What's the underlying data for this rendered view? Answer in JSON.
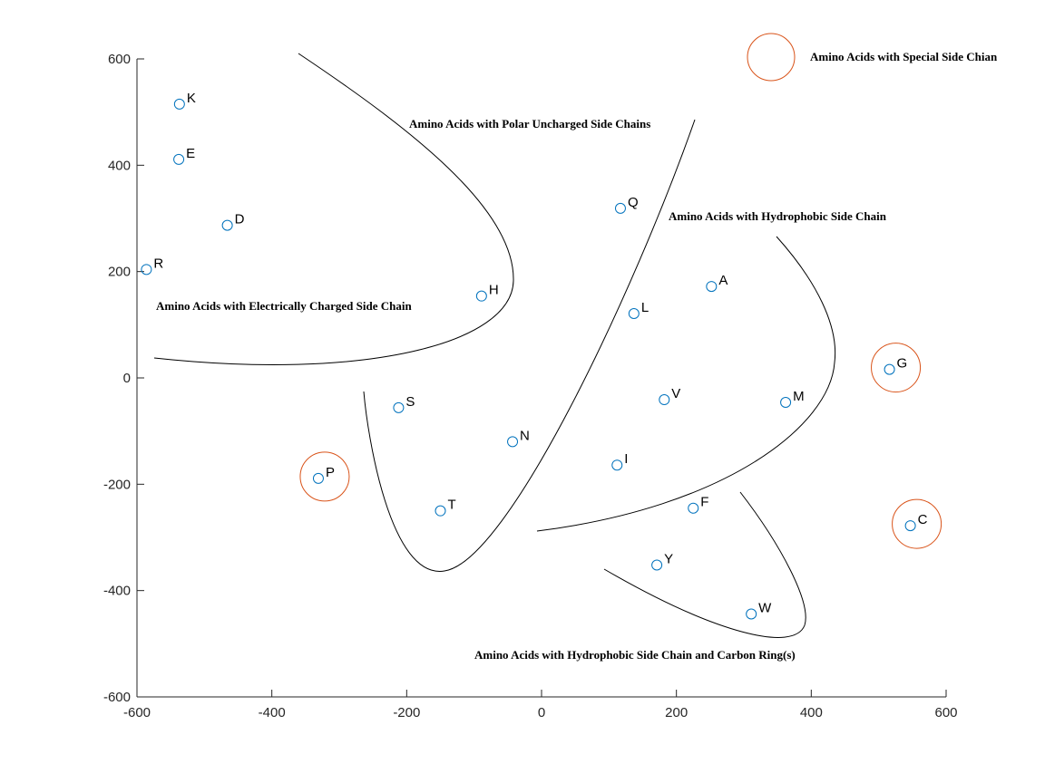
{
  "chart_data": {
    "type": "scatter",
    "title": "",
    "xlabel": "",
    "ylabel": "",
    "xlim": [
      -600,
      600
    ],
    "ylim": [
      -600,
      600
    ],
    "xticks": [
      -600,
      -400,
      -200,
      0,
      200,
      400,
      600
    ],
    "yticks": [
      -600,
      -400,
      -200,
      0,
      200,
      400,
      600
    ],
    "xtick_labels": [
      "-600",
      "-400",
      "-200",
      "0",
      "200",
      "400",
      "600"
    ],
    "ytick_labels": [
      "-600",
      "-400",
      "-200",
      "0",
      "200",
      "400",
      "600"
    ],
    "grid": false,
    "marker_color": "#0072BD",
    "curve_color": "#000000",
    "highlight_color": "#D95319",
    "points": [
      {
        "label": "K",
        "x": -537,
        "y": 515
      },
      {
        "label": "E",
        "x": -538,
        "y": 411
      },
      {
        "label": "D",
        "x": -466,
        "y": 287
      },
      {
        "label": "R",
        "x": -586,
        "y": 204
      },
      {
        "label": "H",
        "x": -89,
        "y": 154
      },
      {
        "label": "Q",
        "x": 117,
        "y": 319
      },
      {
        "label": "A",
        "x": 252,
        "y": 172
      },
      {
        "label": "L",
        "x": 137,
        "y": 121
      },
      {
        "label": "V",
        "x": 182,
        "y": -41
      },
      {
        "label": "M",
        "x": 362,
        "y": -46
      },
      {
        "label": "G",
        "x": 516,
        "y": 16
      },
      {
        "label": "S",
        "x": -212,
        "y": -56
      },
      {
        "label": "N",
        "x": -43,
        "y": -120
      },
      {
        "label": "I",
        "x": 112,
        "y": -164
      },
      {
        "label": "P",
        "x": -331,
        "y": -189
      },
      {
        "label": "T",
        "x": -150,
        "y": -250
      },
      {
        "label": "F",
        "x": 225,
        "y": -245
      },
      {
        "label": "C",
        "x": 547,
        "y": -278
      },
      {
        "label": "Y",
        "x": 171,
        "y": -352
      },
      {
        "label": "W",
        "x": 311,
        "y": -444
      }
    ],
    "highlighted": [
      "P",
      "G",
      "C"
    ],
    "annotations": [
      "Amino Acids with Special Side Chian",
      "Amino Acids with Polar Uncharged Side Chains",
      "Amino Acids with Hydrophobic Side Chain",
      "Amino Acids with Electrically Charged Side Chain",
      "Amino Acids with Hydrophobic Side Chain and Carbon Ring(s)"
    ]
  }
}
